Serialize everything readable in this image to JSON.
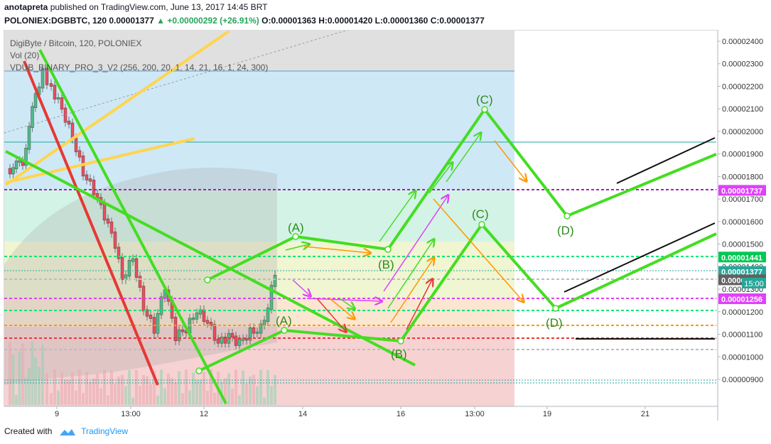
{
  "header": {
    "author": "anotapreta",
    "published_text": "published on TradingView.com, June 13, 2017 14:45 BRT",
    "symbol_line": "POLONIEX:DGBBTC, 120",
    "last": "0.00001377",
    "change": "▲ +0.00000292 (+26.91%)",
    "o": "O:0.00001363",
    "h": "H:0.00001420",
    "l": "L:0.00001360",
    "c": "C:0.00001377"
  },
  "legend": {
    "title": "DigiByte / Bitcoin, 120, POLONIEX",
    "vol": "Vol (20)",
    "indicator": "VDUB_BINARY_PRO_3_V2 (256, 200, 20, 1, 14, 21, 16, 1, 24, 300)"
  },
  "footer": {
    "created_with": "Created with",
    "brand": "TradingView"
  },
  "chart_data": {
    "type": "candlestick",
    "symbol": "POLONIEX:DGBBTC",
    "interval": "120",
    "ylim": [
      8.6e-06,
      2.42e-05
    ],
    "price_ticks": [
      "0.00002400",
      "0.00002300",
      "0.00002200",
      "0.00002100",
      "0.00002000",
      "0.00001900",
      "0.00001800",
      "0.00001700",
      "0.00001600",
      "0.00001500",
      "0.00001400",
      "0.00001300",
      "0.00001200",
      "0.00001100",
      "0.00001000",
      "0.00000900"
    ],
    "time_ticks": [
      "9",
      "13:00",
      "12",
      "14",
      "16",
      "13:00",
      "19",
      "21"
    ],
    "price_labels": [
      {
        "value": 1.737e-05,
        "text": "0.00001737",
        "color": "#e040fb"
      },
      {
        "value": 1.441e-05,
        "text": "0.00001441",
        "color": "#00c853"
      },
      {
        "value": 1.377e-05,
        "text": "0.00001377",
        "color": "#26a69a"
      },
      {
        "value": 1.34e-05,
        "text": "0.00001340",
        "color": "#616161"
      },
      {
        "value": 1.256e-05,
        "text": "0.00001256",
        "color": "#e040fb"
      }
    ],
    "countdown": "15:00",
    "wave_labels": [
      "(A)",
      "(B)",
      "(C)",
      "(D)",
      "(A)",
      "(B)",
      "(C)",
      "(D)"
    ]
  }
}
